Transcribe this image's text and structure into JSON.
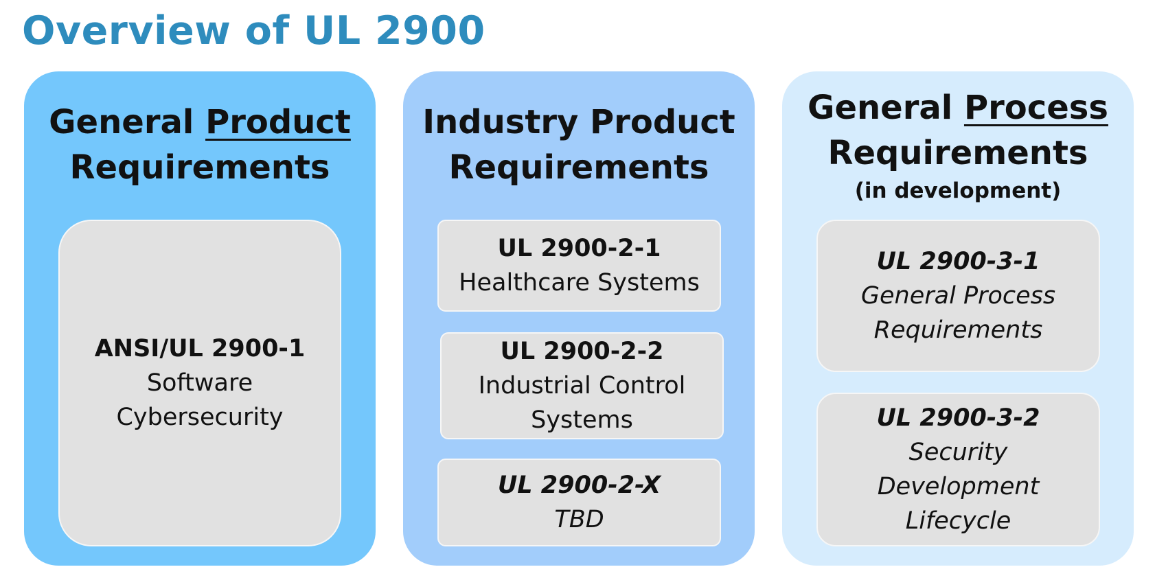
{
  "title": "Overview of UL 2900",
  "colors": {
    "title": "#2e8cbd",
    "panel_1": "#74c7fc",
    "panel_2": "#a2cdfb",
    "panel_3": "#d6ecfd",
    "card": "#e1e1e1"
  },
  "columns": [
    {
      "heading_plain": "General ",
      "heading_underlined": "Product",
      "heading_line2": "Requirements",
      "cards": [
        {
          "code": "ANSI/UL 2900-1",
          "lines": [
            "Software",
            "Cybersecurity"
          ]
        }
      ]
    },
    {
      "heading_line1": "Industry Product",
      "heading_line2": "Requirements",
      "cards": [
        {
          "code": "UL 2900-2-1",
          "lines": [
            "Healthcare Systems"
          ]
        },
        {
          "code": "UL 2900-2-2",
          "lines": [
            "Industrial Control",
            "Systems"
          ]
        },
        {
          "code": "UL 2900-2-X",
          "lines": [
            "TBD"
          ]
        }
      ]
    },
    {
      "heading_plain": "General ",
      "heading_underlined": "Process",
      "heading_line2": "Requirements",
      "subheading": "(in development)",
      "cards": [
        {
          "code": "UL 2900-3-1",
          "lines": [
            "General Process",
            "Requirements"
          ]
        },
        {
          "code": "UL 2900-3-2",
          "lines": [
            "Security",
            "Development",
            "Lifecycle"
          ]
        }
      ]
    }
  ]
}
